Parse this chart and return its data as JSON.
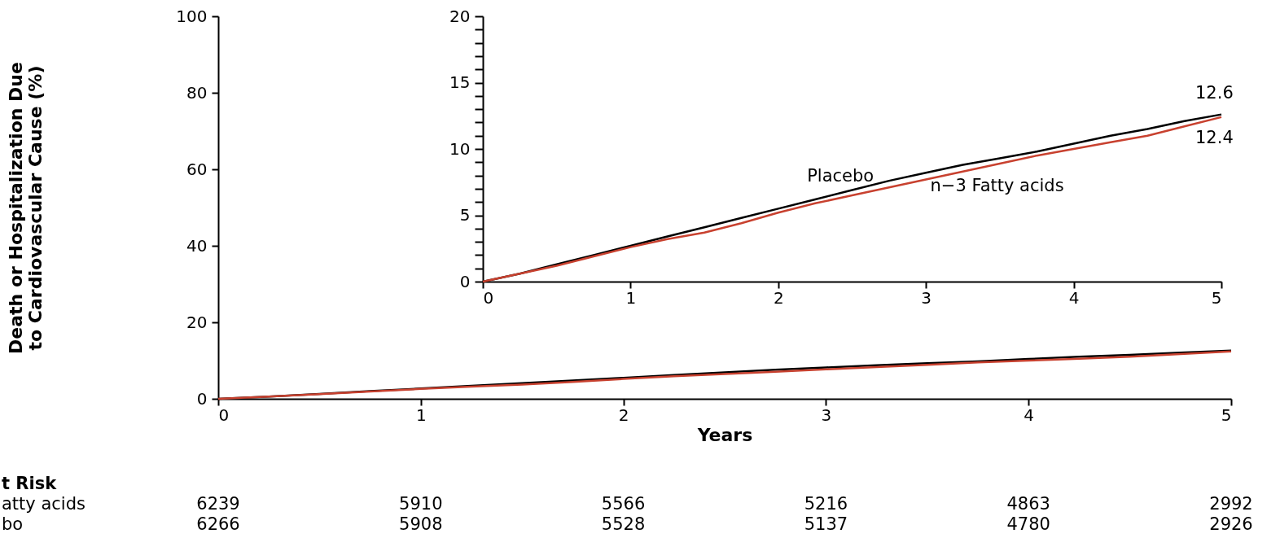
{
  "chart_data": [
    {
      "type": "line",
      "xlabel": "Years",
      "ylabel": "Death or Hospitalization Due\nto Cardiovascular Cause (%)",
      "x": [
        0,
        0.25,
        0.5,
        0.75,
        1,
        1.25,
        1.5,
        1.75,
        2,
        2.25,
        2.5,
        2.75,
        3,
        3.25,
        3.5,
        3.75,
        4,
        4.25,
        4.5,
        4.75,
        5
      ],
      "xlim": [
        0,
        5
      ],
      "xticks": [
        0,
        1,
        2,
        3,
        4,
        5
      ],
      "ylim": [
        0,
        100
      ],
      "yticks": [
        0,
        20,
        40,
        60,
        80,
        100
      ],
      "series": [
        {
          "color": "#000000",
          "values": [
            0,
            0.6,
            1.3,
            2.0,
            2.7,
            3.4,
            4.1,
            4.8,
            5.5,
            6.2,
            6.9,
            7.6,
            8.2,
            8.8,
            9.3,
            9.8,
            10.4,
            11.0,
            11.5,
            12.1,
            12.6
          ]
        },
        {
          "color": "#c8412f",
          "values": [
            0,
            0.6,
            1.2,
            1.9,
            2.6,
            3.2,
            3.7,
            4.4,
            5.2,
            5.9,
            6.5,
            7.1,
            7.7,
            8.3,
            8.9,
            9.5,
            10.0,
            10.5,
            11.0,
            11.7,
            12.4
          ]
        }
      ],
      "annotations": [
        "t Risk",
        "atty acids",
        "6239",
        "5910",
        "5566",
        "5216",
        "4863",
        "2992",
        "bo",
        "6266",
        "5908",
        "5528",
        "5137",
        "4780",
        "2926"
      ]
    },
    {
      "type": "line",
      "x": [
        0,
        0.25,
        0.5,
        0.75,
        1,
        1.25,
        1.5,
        1.75,
        2,
        2.25,
        2.5,
        2.75,
        3,
        3.25,
        3.5,
        3.75,
        4,
        4.25,
        4.5,
        4.75,
        5
      ],
      "xlim": [
        0,
        5
      ],
      "xticks": [
        0,
        1,
        2,
        3,
        4,
        5
      ],
      "ylim": [
        0,
        20
      ],
      "yticks": [
        0,
        {
          "value": 1,
          "label": null
        },
        {
          "value": 2,
          "label": null
        },
        {
          "value": 3,
          "label": null
        },
        {
          "value": 4,
          "label": null
        },
        5,
        {
          "value": 6,
          "label": null
        },
        {
          "value": 7,
          "label": null
        },
        {
          "value": 8,
          "label": null
        },
        {
          "value": 9,
          "label": null
        },
        10,
        {
          "value": 11,
          "label": null
        },
        {
          "value": 12,
          "label": null
        },
        {
          "value": 13,
          "label": null
        },
        {
          "value": 14,
          "label": null
        },
        15,
        {
          "value": 16,
          "label": null
        },
        {
          "value": 17,
          "label": null
        },
        {
          "value": 18,
          "label": null
        },
        {
          "value": 19,
          "label": null
        },
        20
      ],
      "series": [
        {
          "name": "Placebo",
          "color": "#000000",
          "values": [
            0,
            0.6,
            1.3,
            2.0,
            2.7,
            3.4,
            4.1,
            4.8,
            5.5,
            6.2,
            6.9,
            7.6,
            8.2,
            8.8,
            9.3,
            9.8,
            10.4,
            11.0,
            11.5,
            12.1,
            12.6
          ],
          "value_labels": [
            null,
            null,
            null,
            null,
            null,
            null,
            null,
            null,
            null,
            null,
            null,
            null,
            null,
            null,
            null,
            null,
            null,
            null,
            null,
            null,
            "12.6"
          ]
        },
        {
          "name": "n−3 Fatty acids",
          "color": "#c8412f",
          "values": [
            0,
            0.6,
            1.2,
            1.9,
            2.6,
            3.2,
            3.7,
            4.4,
            5.2,
            5.9,
            6.5,
            7.1,
            7.7,
            8.3,
            8.9,
            9.5,
            10.0,
            10.5,
            11.0,
            11.7,
            12.4
          ],
          "value_labels": [
            null,
            null,
            null,
            null,
            null,
            null,
            null,
            null,
            null,
            null,
            null,
            null,
            null,
            null,
            null,
            null,
            null,
            null,
            null,
            null,
            "12.4"
          ]
        }
      ]
    }
  ]
}
